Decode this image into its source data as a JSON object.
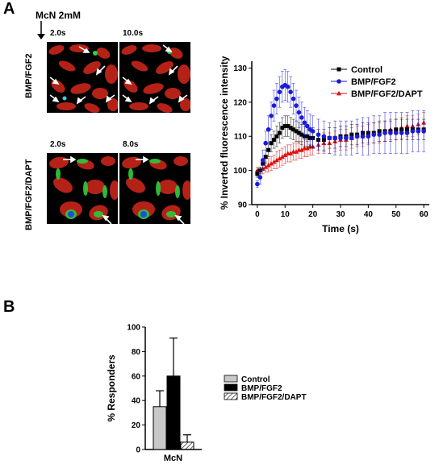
{
  "panel_a": {
    "letter": "A",
    "stimulus_label": "McN 2mM",
    "row_labels": [
      "BMP/FGF2",
      "BMP/FGF2/DAPT"
    ],
    "image_times": [
      "2.0s",
      "10.0s",
      "2.0s",
      "8.0s"
    ]
  },
  "panel_b": {
    "letter": "B"
  },
  "chart_data": [
    {
      "type": "line",
      "xlabel": "Time (s)",
      "ylabel": "% Inverted fluorescence intensity",
      "xlim": [
        -2,
        62
      ],
      "ylim": [
        90,
        132
      ],
      "xticks": [
        0,
        10,
        20,
        30,
        40,
        50,
        60
      ],
      "yticks": [
        90,
        100,
        110,
        120,
        130
      ],
      "legend_position": "top-right",
      "series": [
        {
          "name": "Control",
          "color": "#000000",
          "marker": "square",
          "x": [
            0,
            1,
            2,
            3,
            4,
            5,
            6,
            7,
            8,
            9,
            10,
            11,
            12,
            13,
            14,
            15,
            16,
            17,
            18,
            19,
            20,
            22,
            24,
            26,
            28,
            30,
            32,
            34,
            36,
            38,
            40,
            42,
            44,
            46,
            48,
            50,
            52,
            54,
            56,
            58,
            60
          ],
          "y": [
            99,
            100,
            102,
            104,
            106,
            108,
            109,
            110,
            111,
            112.5,
            113,
            113,
            112.5,
            112,
            111.5,
            111,
            110.5,
            110,
            110,
            109.5,
            109.5,
            109,
            109,
            109.5,
            109.5,
            110,
            110,
            110.5,
            110.5,
            111,
            111,
            111,
            111.5,
            111.5,
            111.5,
            112,
            112,
            112,
            112,
            112,
            112
          ],
          "err": [
            1,
            1,
            1.5,
            2,
            2,
            2.5,
            2.5,
            3,
            3,
            3,
            3,
            3,
            3,
            3,
            3,
            3,
            3,
            3,
            3,
            3,
            3,
            3,
            3,
            3,
            3,
            3,
            3,
            3,
            3,
            3,
            3,
            3,
            3,
            3,
            3,
            3,
            3,
            3,
            3,
            3,
            3
          ]
        },
        {
          "name": "BMP/FGF2",
          "color": "#1a1adb",
          "marker": "circle",
          "x": [
            0,
            1,
            2,
            3,
            4,
            5,
            6,
            7,
            8,
            9,
            10,
            11,
            12,
            13,
            14,
            15,
            16,
            17,
            18,
            19,
            20,
            22,
            24,
            26,
            28,
            30,
            32,
            34,
            36,
            38,
            40,
            42,
            44,
            46,
            48,
            50,
            52,
            54,
            56,
            58,
            60
          ],
          "y": [
            96,
            98,
            103,
            108,
            112,
            116,
            119,
            121,
            123,
            124.5,
            125,
            124.5,
            123,
            121,
            119,
            117,
            115.5,
            114,
            113,
            112,
            111.5,
            110.5,
            110,
            109.5,
            109.5,
            109.5,
            109.5,
            109.5,
            110,
            110,
            110,
            110.5,
            110.5,
            111,
            111,
            111,
            111,
            111,
            111.5,
            111.5,
            111.5
          ],
          "err": [
            1,
            2,
            3,
            3.5,
            4,
            4,
            4.5,
            4.5,
            4.5,
            4.5,
            4.5,
            4.5,
            4.5,
            4.5,
            4.5,
            4.5,
            4.5,
            4.5,
            4.5,
            4.5,
            4.5,
            4.5,
            4.5,
            4.5,
            5,
            5,
            5,
            5,
            5,
            5.5,
            5.5,
            5.5,
            5.5,
            6,
            6,
            6,
            6,
            6,
            6,
            6,
            6
          ]
        },
        {
          "name": "BMP/FGF2/DAPT",
          "color": "#e01010",
          "marker": "triangle",
          "x": [
            0,
            1,
            2,
            3,
            4,
            5,
            6,
            7,
            8,
            9,
            10,
            11,
            12,
            13,
            14,
            15,
            16,
            17,
            18,
            19,
            20,
            22,
            24,
            26,
            28,
            30,
            32,
            34,
            36,
            38,
            40,
            42,
            44,
            46,
            48,
            50,
            52,
            54,
            56,
            58,
            60
          ],
          "y": [
            100,
            100,
            100.5,
            101,
            101.5,
            102,
            102.5,
            103,
            103.5,
            104,
            104.5,
            105,
            105,
            105.5,
            105.5,
            106,
            106,
            106.5,
            106.5,
            107,
            107,
            107.5,
            108,
            108,
            108.5,
            109,
            109,
            109.5,
            110,
            110,
            110.5,
            111,
            111,
            111.5,
            112,
            112,
            112.5,
            113,
            113,
            113.5,
            114
          ],
          "err": [
            1,
            1,
            1.5,
            1.5,
            2,
            2,
            2,
            2.5,
            2.5,
            2.5,
            2.5,
            2.5,
            2.5,
            2.5,
            2.5,
            2.5,
            2.5,
            2.5,
            2.5,
            2.5,
            2.5,
            2.5,
            3,
            3,
            3,
            3,
            3,
            3,
            3,
            3,
            3,
            3,
            3,
            3,
            3,
            3,
            3,
            3,
            3,
            3,
            3
          ]
        }
      ]
    },
    {
      "type": "bar",
      "ylabel": "% Responders",
      "categories": [
        "McN"
      ],
      "ylim": [
        0,
        100
      ],
      "yticks": [
        0,
        20,
        40,
        60,
        80,
        100
      ],
      "legend_position": "right",
      "series": [
        {
          "name": "Control",
          "value": 35,
          "err": 13,
          "fill": "#c8c8c8",
          "pattern": "solid"
        },
        {
          "name": "BMP/FGF2",
          "value": 60,
          "err": 31,
          "fill": "#000000",
          "pattern": "solid"
        },
        {
          "name": "BMP/FGF2/DAPT",
          "value": 6,
          "err": 6,
          "fill": "#ffffff",
          "pattern": "hatch"
        }
      ]
    }
  ]
}
